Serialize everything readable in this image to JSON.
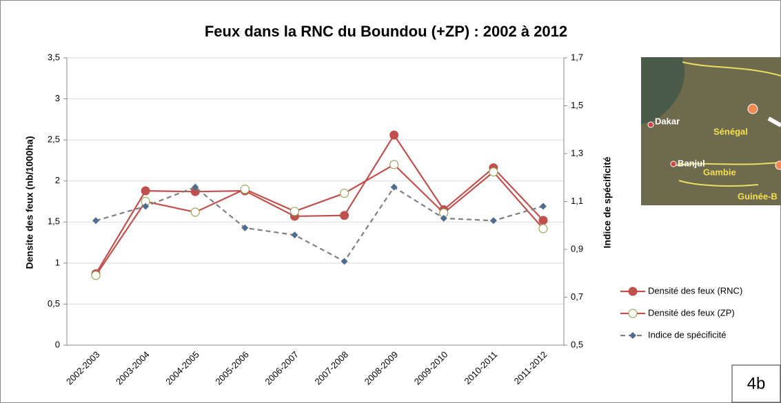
{
  "chart_data": {
    "type": "line",
    "title": "Feux dans la RNC du Boundou (+ZP) : 2002 à 2012",
    "ylabel": "Densite des feux (nb/1000ha)",
    "y2label": "Indice de spécificité",
    "categories": [
      "2002-2003",
      "2003-2004",
      "2004-2005",
      "2005-2006",
      "2006-2007",
      "2007-2008",
      "2008-2009",
      "2009-2010",
      "2010-2011",
      "2011-2012"
    ],
    "series": [
      {
        "name": "Densité des feux (RNC)",
        "color": "#c0504d",
        "marker": "circle",
        "values": [
          0.87,
          1.88,
          1.87,
          1.88,
          1.57,
          1.58,
          2.56,
          1.65,
          2.16,
          1.52
        ]
      },
      {
        "name": "Densité des feux (ZP)",
        "color": "#c0504d",
        "marker": "circle-open",
        "values": [
          0.85,
          1.75,
          1.62,
          1.9,
          1.63,
          1.85,
          2.2,
          1.61,
          2.11,
          1.42
        ]
      },
      {
        "name": "Indice de spécificité",
        "color": "#7f7f7f",
        "marker": "diamond",
        "marker_color": "#4f6d8f",
        "dashed": true,
        "axis": "y2",
        "values": [
          1.02,
          1.08,
          1.16,
          0.99,
          0.96,
          0.85,
          1.16,
          1.03,
          1.02,
          1.08
        ]
      }
    ],
    "ylim": [
      0,
      3.5
    ],
    "yticks": [
      0,
      {
        "value": 0.5,
        "label": "0,5"
      },
      1,
      {
        "value": 1.5,
        "label": "1,5"
      },
      2,
      {
        "value": 2.5,
        "label": "2,5"
      },
      3,
      {
        "value": 3.5,
        "label": "3,5"
      }
    ],
    "y2lim": [
      0.5,
      1.7
    ],
    "y2ticks": [
      {
        "value": 0.5,
        "label": "0,5"
      },
      {
        "value": 0.7,
        "label": "0,7"
      },
      {
        "value": 0.9,
        "label": "0,9"
      },
      {
        "value": 1.1,
        "label": "1,1"
      },
      {
        "value": 1.3,
        "label": "1,3"
      },
      {
        "value": 1.5,
        "label": "1,5"
      },
      {
        "value": 1.7,
        "label": "1,7"
      }
    ],
    "grid": true,
    "legend": "right",
    "map_labels": [
      "Dakar",
      "Sénégal",
      "Banjul",
      "Gambie",
      "Guinée-B"
    ],
    "figure_label": "4b"
  }
}
